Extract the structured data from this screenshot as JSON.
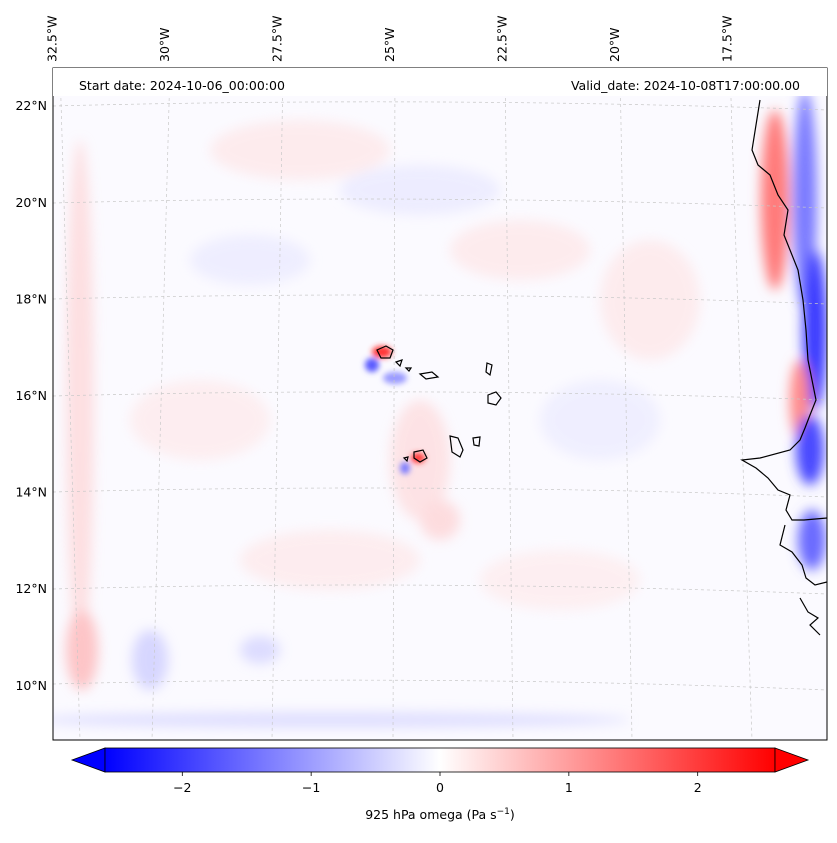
{
  "header": {
    "start_label": "Start date: 2024-10-06_00:00:00",
    "valid_label": "Valid_date: 2024-10-08T17:00:00.00"
  },
  "map": {
    "projection": "lambert-conformal",
    "lon_range": [
      -33.7,
      -15.5
    ],
    "lat_range": [
      8.9,
      22.8
    ],
    "lon_ticks": [
      {
        "value": -32.5,
        "label": "32.5°W"
      },
      {
        "value": -30.0,
        "label": "30°W"
      },
      {
        "value": -27.5,
        "label": "27.5°W"
      },
      {
        "value": -25.0,
        "label": "25°W"
      },
      {
        "value": -22.5,
        "label": "22.5°W"
      },
      {
        "value": -20.0,
        "label": "20°W"
      },
      {
        "value": -17.5,
        "label": "17.5°W"
      }
    ],
    "lat_ticks": [
      {
        "value": 22,
        "label": "22°N"
      },
      {
        "value": 20,
        "label": "20°N"
      },
      {
        "value": 18,
        "label": "18°N"
      },
      {
        "value": 16,
        "label": "16°N"
      },
      {
        "value": 14,
        "label": "14°N"
      },
      {
        "value": 12,
        "label": "12°N"
      },
      {
        "value": 10,
        "label": "10°N"
      }
    ],
    "gridlines": true,
    "field": "925 hPa omega",
    "features": [
      "coastlines",
      "cape-verde-islands",
      "west-africa-coast"
    ]
  },
  "colorbar": {
    "label_prefix": "925 hPa omega (Pa s",
    "label_exp": "−1",
    "label_suffix": ")",
    "vmin": -2.6,
    "vmax": 2.6,
    "colormap": "bwr",
    "extend": "both",
    "ticks": [
      {
        "value": -2,
        "label": "−2"
      },
      {
        "value": -1,
        "label": "−1"
      },
      {
        "value": 0,
        "label": "0"
      },
      {
        "value": 1,
        "label": "1"
      },
      {
        "value": 2,
        "label": "2"
      }
    ],
    "colors": {
      "low": "#0000ff",
      "mid": "#ffffff",
      "high": "#ff0000"
    }
  }
}
